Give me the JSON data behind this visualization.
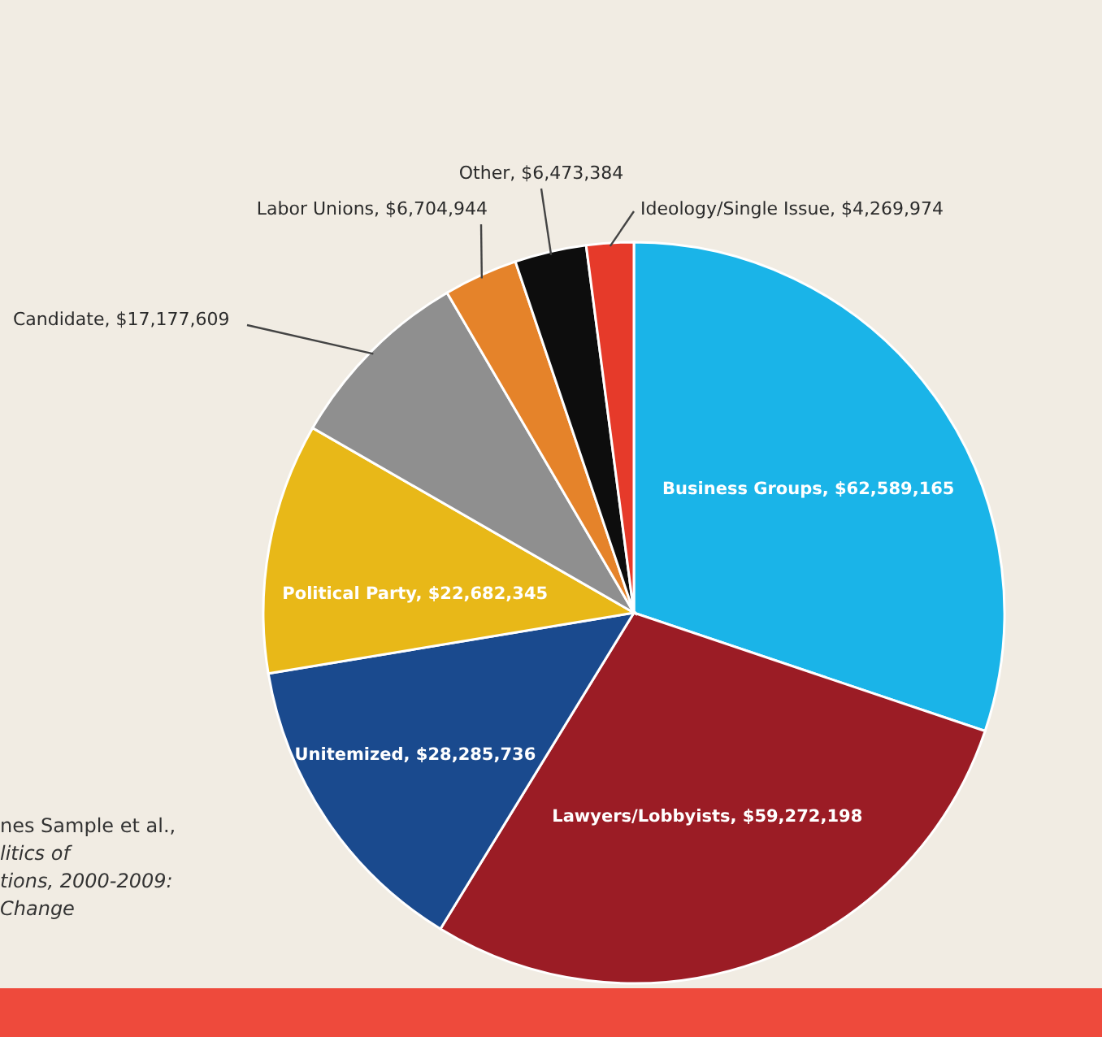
{
  "chart_data": {
    "type": "pie",
    "categories": [
      "Business Groups",
      "Lawyers/Lobbyists",
      "Unitemized",
      "Political Party",
      "Candidate",
      "Labor Unions",
      "Other",
      "Ideology/Single Issue"
    ],
    "values": [
      62589165,
      59272198,
      28285736,
      22682345,
      17177609,
      6704944,
      6473384,
      4269974
    ],
    "colors": [
      "#1ab4e8",
      "#9b1c25",
      "#1a4a8e",
      "#e8b818",
      "#8f8f8f",
      "#e5832a",
      "#0d0d0d",
      "#e63a2a"
    ],
    "value_labels": [
      "$62,589,165",
      "$59,272,198",
      "$28,285,736",
      "$22,682,345",
      "$17,177,609",
      "$6,704,944",
      "$6,473,384",
      "$4,269,974"
    ],
    "annotations": [
      "nes Sample et al.,\nlitics of\ntions, 2000-2009:\nChange"
    ],
    "legend": false
  }
}
